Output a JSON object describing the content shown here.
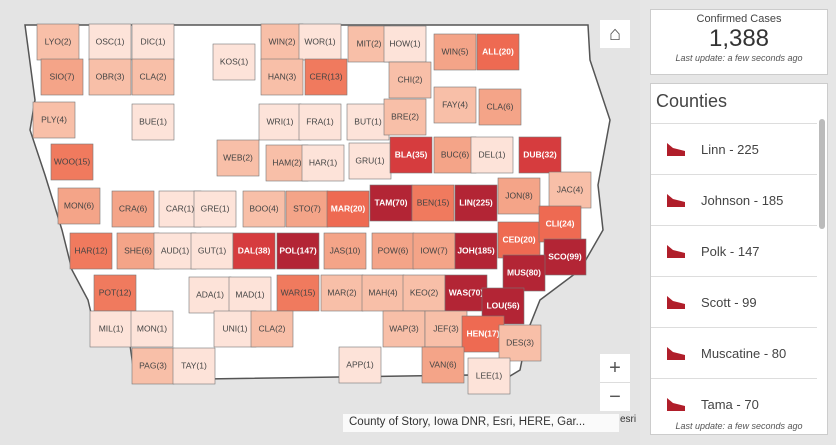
{
  "map": {
    "counties": [
      {
        "label": "LYO(2)",
        "color": "#f8bfa8"
      },
      {
        "label": "OSC(1)",
        "color": "#fde3d9"
      },
      {
        "label": "DIC(1)",
        "color": "#fde3d9"
      },
      {
        "label": "KOS(1)",
        "color": "#fde3d9"
      },
      {
        "label": "WIN(2)",
        "color": "#f8bfa8"
      },
      {
        "label": "WOR(1)",
        "color": "#fde3d9"
      },
      {
        "label": "MIT(2)",
        "color": "#f8bfa8"
      },
      {
        "label": "HOW(1)",
        "color": "#fde3d9"
      },
      {
        "label": "WIN(5)",
        "color": "#f4a488"
      },
      {
        "label": "ALL(20)",
        "color": "#ee6a52"
      },
      {
        "label": "SIO(7)",
        "color": "#f4a488"
      },
      {
        "label": "OBR(3)",
        "color": "#f8bfa8"
      },
      {
        "label": "CLA(2)",
        "color": "#f8bfa8"
      },
      {
        "label": "HAN(3)",
        "color": "#f8bfa8"
      },
      {
        "label": "CER(13)",
        "color": "#f07a5e"
      },
      {
        "label": "CHI(2)",
        "color": "#f8bfa8"
      },
      {
        "label": "FAY(4)",
        "color": "#f8bfa8"
      },
      {
        "label": "CLA(6)",
        "color": "#f4a488"
      },
      {
        "label": "PLY(4)",
        "color": "#f8bfa8"
      },
      {
        "label": "BUE(1)",
        "color": "#fde3d9"
      },
      {
        "label": "WRI(1)",
        "color": "#fde3d9"
      },
      {
        "label": "FRA(1)",
        "color": "#fde3d9"
      },
      {
        "label": "BUT(1)",
        "color": "#fde3d9"
      },
      {
        "label": "BRE(2)",
        "color": "#f8bfa8"
      },
      {
        "label": "WOO(15)",
        "color": "#f07a5e"
      },
      {
        "label": "WEB(2)",
        "color": "#f8bfa8"
      },
      {
        "label": "HAM(2)",
        "color": "#f8bfa8"
      },
      {
        "label": "HAR(1)",
        "color": "#fde3d9"
      },
      {
        "label": "GRU(1)",
        "color": "#fde3d9"
      },
      {
        "label": "BLA(35)",
        "color": "#d63c3e"
      },
      {
        "label": "BUC(6)",
        "color": "#f4a488"
      },
      {
        "label": "DEL(1)",
        "color": "#fde3d9"
      },
      {
        "label": "DUB(32)",
        "color": "#d63c3e"
      },
      {
        "label": "MON(6)",
        "color": "#f4a488"
      },
      {
        "label": "CRA(6)",
        "color": "#f4a488"
      },
      {
        "label": "CAR(1)",
        "color": "#fde3d9"
      },
      {
        "label": "GRE(1)",
        "color": "#fde3d9"
      },
      {
        "label": "BOO(4)",
        "color": "#f8bfa8"
      },
      {
        "label": "STO(7)",
        "color": "#f4a488"
      },
      {
        "label": "MAR(20)",
        "color": "#ee6a52"
      },
      {
        "label": "TAM(70)",
        "color": "#b32535"
      },
      {
        "label": "BEN(15)",
        "color": "#f07a5e"
      },
      {
        "label": "LIN(225)",
        "color": "#b32535"
      },
      {
        "label": "JON(8)",
        "color": "#f4a488"
      },
      {
        "label": "JAC(4)",
        "color": "#f8bfa8"
      },
      {
        "label": "HAR(12)",
        "color": "#f07a5e"
      },
      {
        "label": "SHE(6)",
        "color": "#f4a488"
      },
      {
        "label": "AUD(1)",
        "color": "#fde3d9"
      },
      {
        "label": "GUT(1)",
        "color": "#fde3d9"
      },
      {
        "label": "DAL(38)",
        "color": "#d63c3e"
      },
      {
        "label": "POL(147)",
        "color": "#b32535"
      },
      {
        "label": "JAS(10)",
        "color": "#f4a488"
      },
      {
        "label": "POW(6)",
        "color": "#f4a488"
      },
      {
        "label": "IOW(7)",
        "color": "#f4a488"
      },
      {
        "label": "JOH(185)",
        "color": "#b32535"
      },
      {
        "label": "CED(20)",
        "color": "#ee6a52"
      },
      {
        "label": "CLI(24)",
        "color": "#ee6a52"
      },
      {
        "label": "SCO(99)",
        "color": "#b32535"
      },
      {
        "label": "MUS(80)",
        "color": "#b32535"
      },
      {
        "label": "POT(12)",
        "color": "#f07a5e"
      },
      {
        "label": "ADA(1)",
        "color": "#fde3d9"
      },
      {
        "label": "MAD(1)",
        "color": "#fde3d9"
      },
      {
        "label": "WAR(15)",
        "color": "#f07a5e"
      },
      {
        "label": "MAR(2)",
        "color": "#f8bfa8"
      },
      {
        "label": "MAH(4)",
        "color": "#f8bfa8"
      },
      {
        "label": "KEO(2)",
        "color": "#f8bfa8"
      },
      {
        "label": "WAS(70)",
        "color": "#b32535"
      },
      {
        "label": "LOU(56)",
        "color": "#b32535"
      },
      {
        "label": "MIL(1)",
        "color": "#fde3d9"
      },
      {
        "label": "MON(1)",
        "color": "#fde3d9"
      },
      {
        "label": "UNI(1)",
        "color": "#fde3d9"
      },
      {
        "label": "CLA(2)",
        "color": "#f8bfa8"
      },
      {
        "label": "WAP(3)",
        "color": "#f8bfa8"
      },
      {
        "label": "JEF(3)",
        "color": "#f8bfa8"
      },
      {
        "label": "HEN(17)",
        "color": "#ee6a52"
      },
      {
        "label": "DES(3)",
        "color": "#f8bfa8"
      },
      {
        "label": "PAG(3)",
        "color": "#f8bfa8"
      },
      {
        "label": "TAY(1)",
        "color": "#fde3d9"
      },
      {
        "label": "APP(1)",
        "color": "#fde3d9"
      },
      {
        "label": "VAN(6)",
        "color": "#f4a488"
      },
      {
        "label": "LEE(1)",
        "color": "#fde3d9"
      }
    ],
    "attribution": "County of Story, Iowa DNR, Esri, HERE, Gar...",
    "zoom_in": "+",
    "zoom_out": "−"
  },
  "summary": {
    "title": "Confirmed Cases",
    "value": "1,388",
    "footer": "Last update: a few seconds ago"
  },
  "list": {
    "title": "Counties",
    "items": [
      "Linn - 225",
      "Johnson - 185",
      "Polk - 147",
      "Scott - 99",
      "Muscatine - 80",
      "Tama - 70"
    ],
    "footer": "Last update: a few seconds ago"
  }
}
